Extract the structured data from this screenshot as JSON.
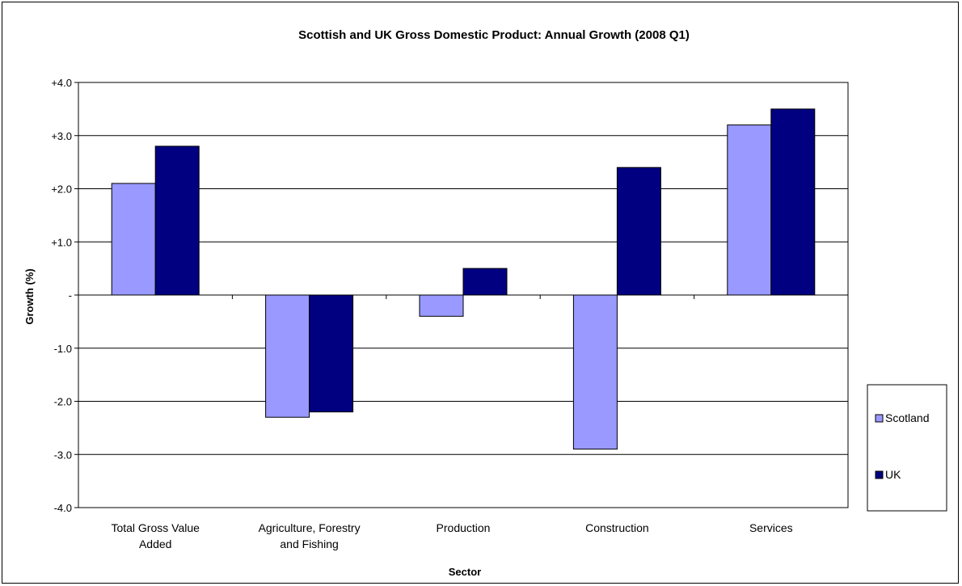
{
  "chart_data": {
    "type": "bar",
    "title": "Scottish and UK Gross Domestic Product: Annual Growth (2008 Q1)",
    "xlabel": "Sector",
    "ylabel": "Growth (%)",
    "categories": [
      [
        "Total Gross Value",
        "Added"
      ],
      [
        "Agriculture, Forestry",
        "and Fishing"
      ],
      [
        "Production"
      ],
      [
        "Construction"
      ],
      [
        "Services"
      ]
    ],
    "series": [
      {
        "name": "Scotland",
        "color": "#9999ff",
        "values": [
          2.1,
          -2.3,
          -0.4,
          -2.9,
          3.2
        ]
      },
      {
        "name": "UK",
        "color": "#000080",
        "values": [
          2.8,
          -2.2,
          0.5,
          2.4,
          3.5
        ]
      }
    ],
    "ylim": [
      -4,
      4
    ],
    "yticks": [
      {
        "value": 4,
        "label": "+4.0"
      },
      {
        "value": 3,
        "label": "+3.0"
      },
      {
        "value": 2,
        "label": "+2.0"
      },
      {
        "value": 1,
        "label": "+1.0"
      },
      {
        "value": 0,
        "label": "-"
      },
      {
        "value": -1,
        "label": "-1.0"
      },
      {
        "value": -2,
        "label": "-2.0"
      },
      {
        "value": -3,
        "label": "-3.0"
      },
      {
        "value": -4,
        "label": "-4.0"
      }
    ],
    "grid": true,
    "legend_position": "right"
  }
}
